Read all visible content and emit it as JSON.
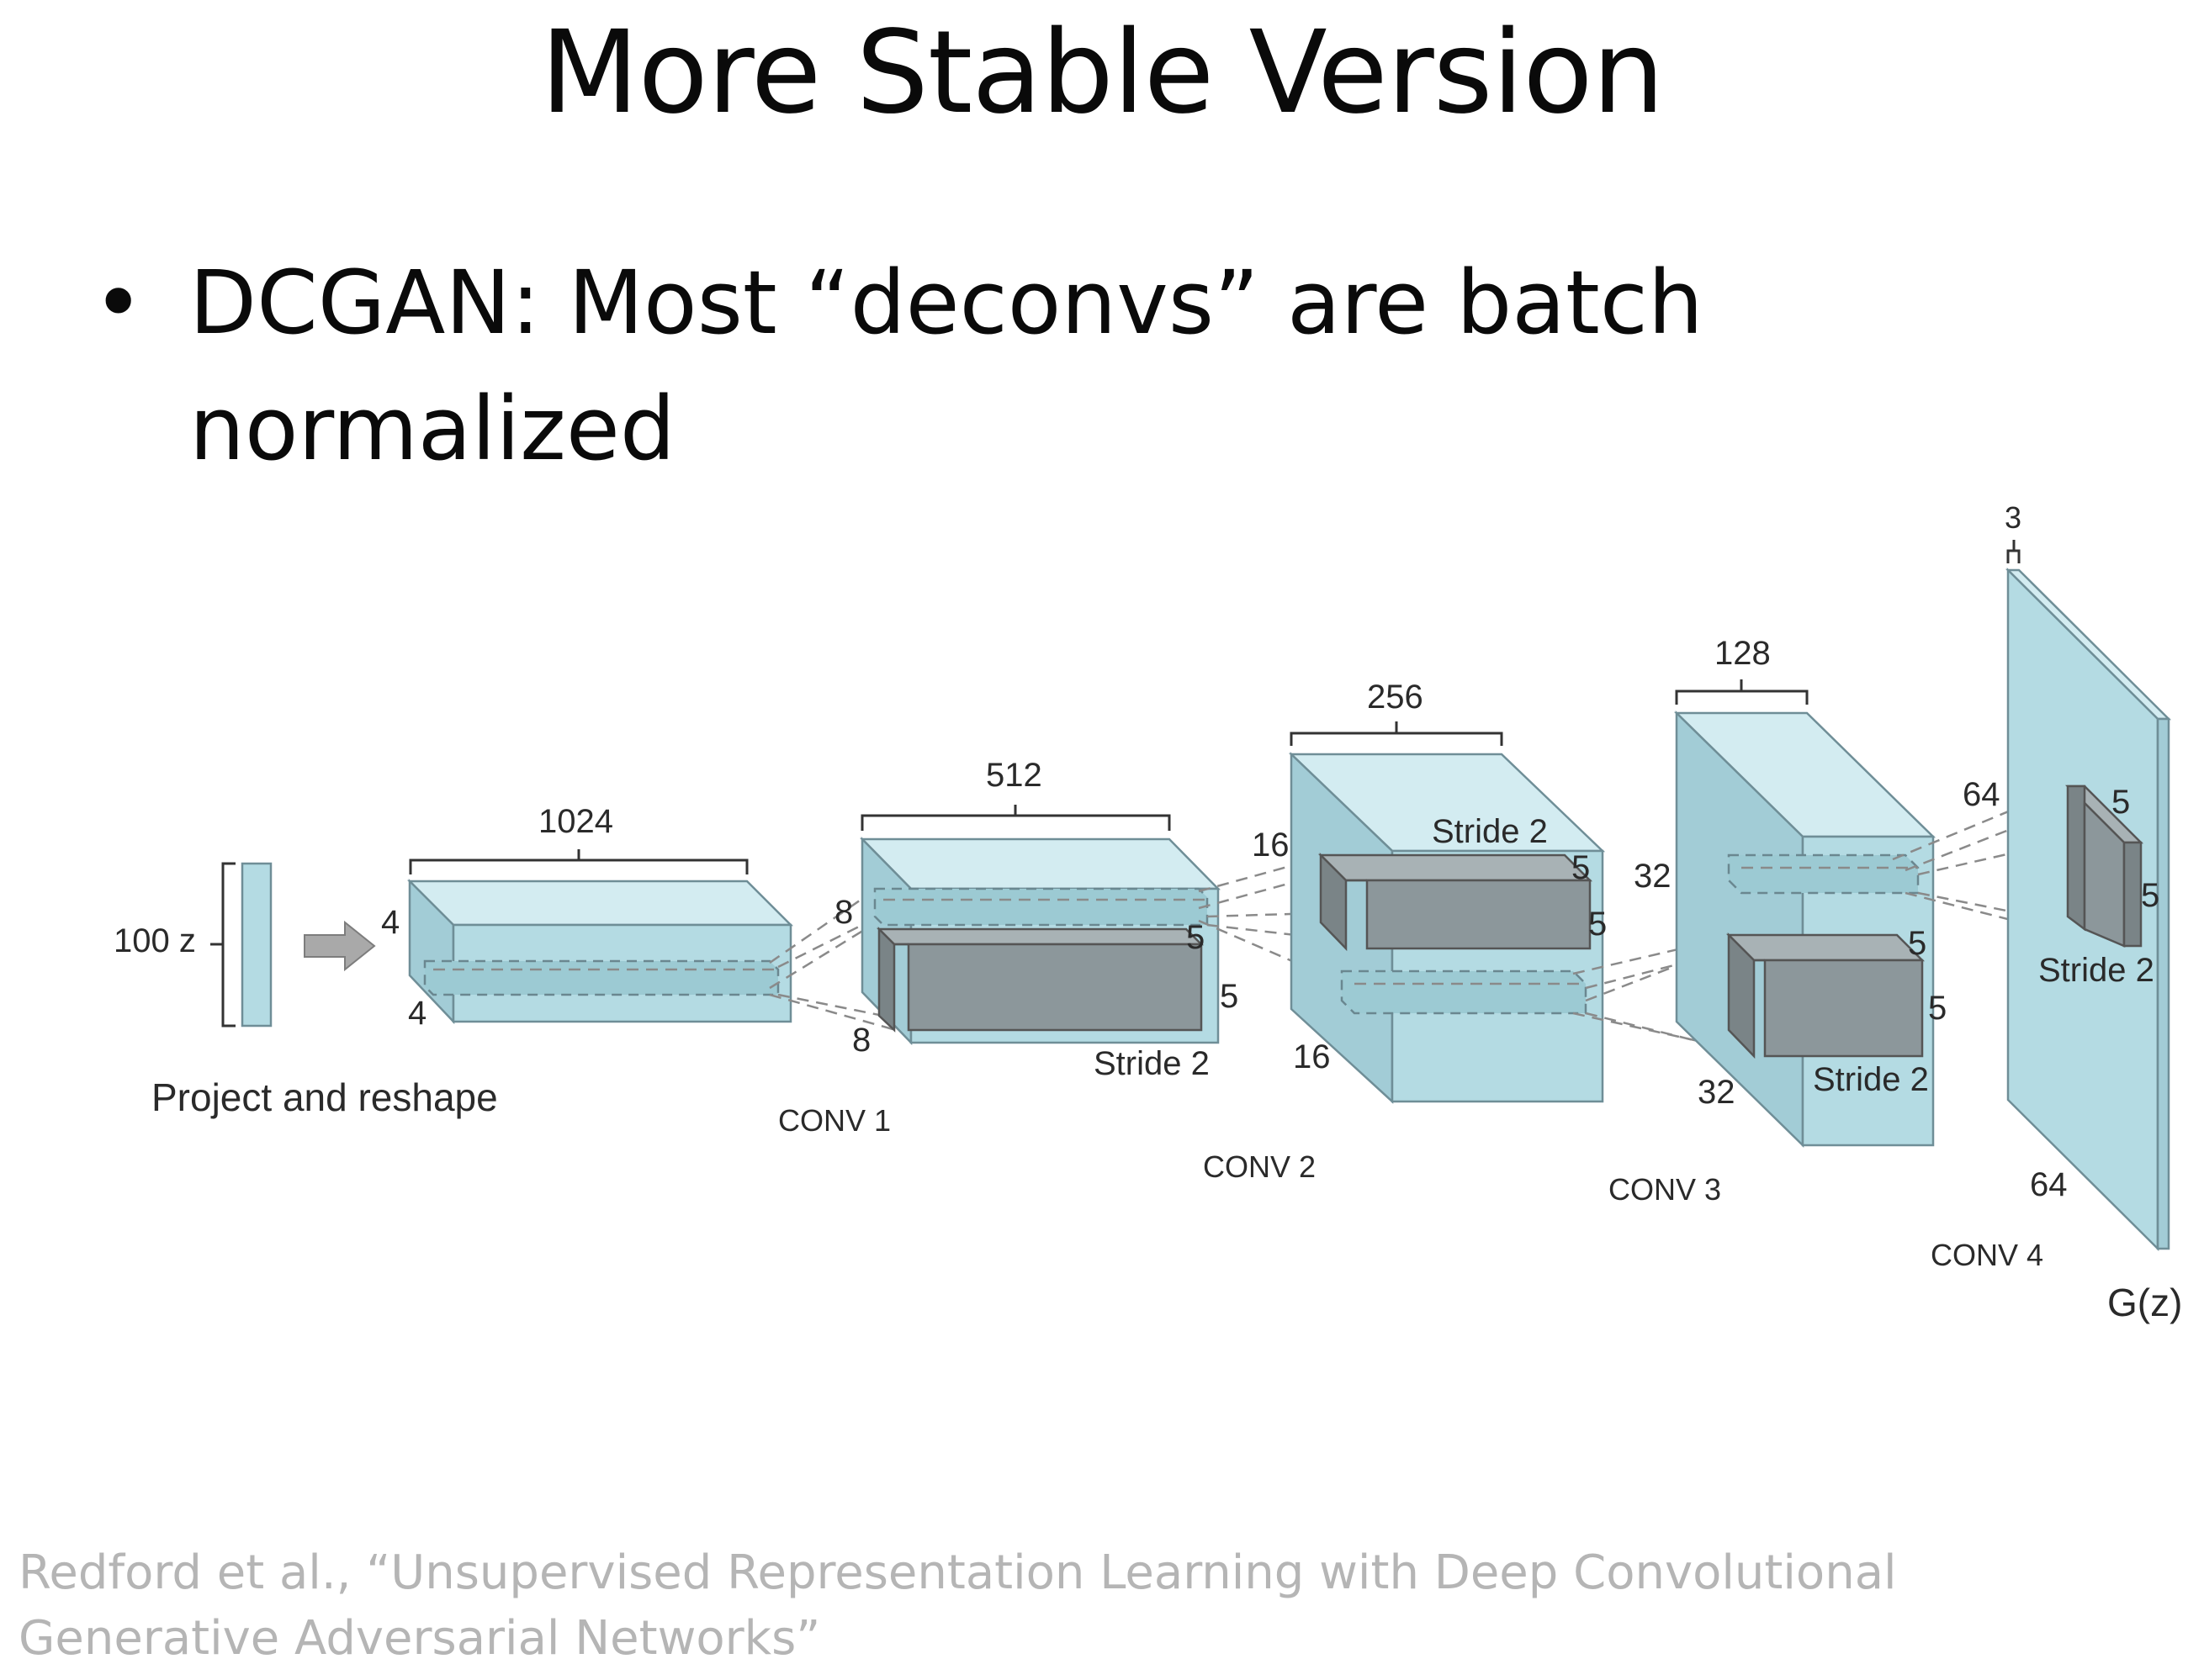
{
  "slide": {
    "title": "More Stable Version",
    "bullet_marker": "•",
    "bullet": "DCGAN: Most “deconvs” are batch normalized",
    "citation": "Redford et al., “Unsupervised Representation Learning with Deep Convolutional Generative Adversarial Networks”"
  },
  "diagram": {
    "input": {
      "label": "100 z",
      "caption": "Project and reshape"
    },
    "layer0": {
      "depth": "1024",
      "height": "4",
      "width": "4"
    },
    "conv1": {
      "label": "CONV 1",
      "depth": "512",
      "height": "8",
      "width": "8",
      "kernel_h": "5",
      "kernel_w": "5",
      "stride": "Stride 2"
    },
    "conv2": {
      "label": "CONV 2",
      "depth": "256",
      "height": "16",
      "width": "16",
      "kernel_h": "5",
      "kernel_w": "5",
      "stride": "Stride 2"
    },
    "conv3": {
      "label": "CONV 3",
      "depth": "128",
      "height": "32",
      "width": "32",
      "kernel_h": "5",
      "kernel_w": "5",
      "stride": "Stride 2"
    },
    "conv4": {
      "label": "CONV 4",
      "depth": "3",
      "height": "64",
      "width": "64",
      "kernel_h": "5",
      "kernel_w": "5",
      "stride": "Stride 2"
    },
    "output": {
      "label": "G(z)"
    }
  }
}
